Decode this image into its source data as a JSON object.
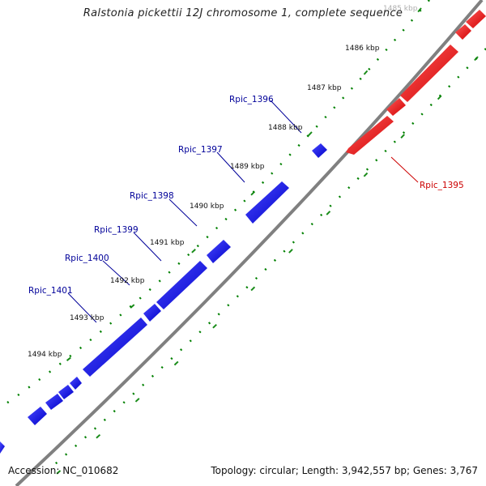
{
  "title": "Ralstonia pickettii 12J chromosome 1, complete sequence",
  "footer": {
    "accession": "Accession: NC_010682",
    "summary": "Topology: circular; Length: 3,942,557 bp; Genes: 3,767"
  },
  "colors": {
    "backbone": "#808080",
    "forward_gene": "#ff0000",
    "reverse_gene": "#0000ff",
    "tick": "#008000",
    "forward_label": "#cc0000",
    "reverse_label": "#000099"
  },
  "ticks": [
    {
      "label": "1485 kbp",
      "faded": true
    },
    {
      "label": "1486 kbp"
    },
    {
      "label": "1487 kbp"
    },
    {
      "label": "1488 kbp"
    },
    {
      "label": "1489 kbp"
    },
    {
      "label": "1490 kbp"
    },
    {
      "label": "1491 kbp"
    },
    {
      "label": "1492 kbp"
    },
    {
      "label": "1493 kbp"
    },
    {
      "label": "1494 kbp"
    }
  ],
  "gene_labels": [
    {
      "name": "Rpic_1395",
      "strand": "forward"
    },
    {
      "name": "Rpic_1396",
      "strand": "reverse"
    },
    {
      "name": "Rpic_1397",
      "strand": "reverse"
    },
    {
      "name": "Rpic_1398",
      "strand": "reverse"
    },
    {
      "name": "Rpic_1399",
      "strand": "reverse"
    },
    {
      "name": "Rpic_1400",
      "strand": "reverse"
    },
    {
      "name": "Rpic_1401",
      "strand": "reverse"
    }
  ]
}
